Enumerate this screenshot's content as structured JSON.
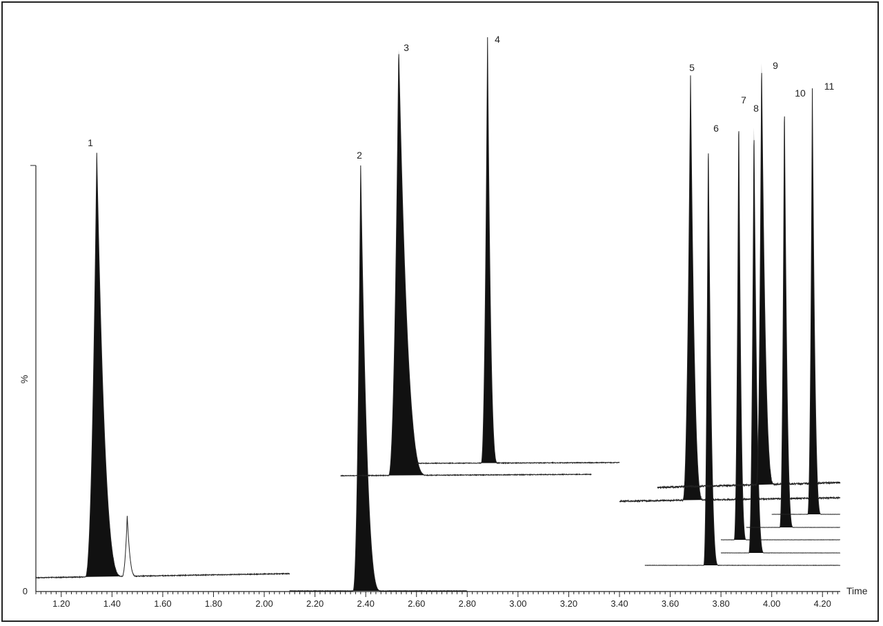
{
  "chart_data": {
    "type": "line",
    "title": "",
    "xlabel": "Time",
    "ylabel": "%",
    "xlim": [
      1.1,
      4.27
    ],
    "ylim": [
      0,
      100
    ],
    "y_tick_labels": [
      "0"
    ],
    "x_ticks": [
      1.2,
      1.4,
      1.6,
      1.8,
      2.0,
      2.2,
      2.4,
      2.6,
      2.8,
      3.0,
      3.2,
      3.4,
      3.6,
      3.8,
      4.0,
      4.2
    ],
    "x_tick_labels": [
      "1.20",
      "1.40",
      "1.60",
      "1.80",
      "2.00",
      "2.20",
      "2.40",
      "2.60",
      "2.80",
      "3.00",
      "3.20",
      "3.40",
      "3.60",
      "3.80",
      "4.00",
      "4.20"
    ],
    "grid": false,
    "legend": "none",
    "style": "overlaid offset chromatogram traces with filled peaks",
    "peaks": [
      {
        "label": "1",
        "retention_time": 1.34
      },
      {
        "label": "2",
        "retention_time": 2.38
      },
      {
        "label": "3",
        "retention_time": 2.53
      },
      {
        "label": "4",
        "retention_time": 2.88
      },
      {
        "label": "5",
        "retention_time": 3.68
      },
      {
        "label": "6",
        "retention_time": 3.75
      },
      {
        "label": "7",
        "retention_time": 3.87
      },
      {
        "label": "8",
        "retention_time": 3.93
      },
      {
        "label": "9",
        "retention_time": 3.96
      },
      {
        "label": "10",
        "retention_time": 4.05
      },
      {
        "label": "11",
        "retention_time": 4.16
      }
    ],
    "minor_peak_retention_time": 1.46
  }
}
